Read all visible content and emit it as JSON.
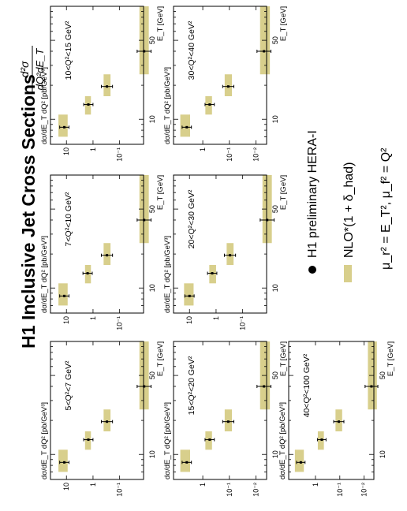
{
  "title": "H1 Inclusive Jet Cross Sections",
  "formula": {
    "numerator": "d²σ",
    "denominator": "dQ²dE_T"
  },
  "legend": {
    "data_label": "H1 preliminary HERA-I",
    "nlo_label": "NLO*(1 + δ_had)",
    "scale_label": "μ_r² = E_T², μ_f² = Q²"
  },
  "axis_labels": {
    "x": "E_T [GeV]",
    "y": "dσ/dE_T dQ² [pb/GeV³]"
  },
  "colors": {
    "nlo_band": "#d8cf8c",
    "data_point": "#000000"
  },
  "chart_data": [
    {
      "type": "scatter",
      "label": "5<Q²<7 GeV²",
      "x_ticks": [
        10,
        50
      ],
      "y_ticks": [
        "10",
        "1",
        "10⁻¹"
      ],
      "log_x": true,
      "log_y": true,
      "points": [
        {
          "x": 8.5,
          "y": 12,
          "err": 0.1
        },
        {
          "x": 13.5,
          "y": 1.5,
          "err": 0.1
        },
        {
          "x": 19.5,
          "y": 0.3,
          "err": 0.12
        },
        {
          "x": 40,
          "y": 0.012,
          "err": 0.15
        }
      ],
      "bands": [
        {
          "xmin": 7,
          "xmax": 11,
          "ymin": 9,
          "ymax": 20
        },
        {
          "xmin": 11,
          "xmax": 16,
          "ymin": 1.2,
          "ymax": 2
        },
        {
          "xmin": 16,
          "xmax": 25,
          "ymin": 0.22,
          "ymax": 0.4
        },
        {
          "xmin": 25,
          "xmax": 100,
          "ymin": 0.008,
          "ymax": 0.018
        }
      ]
    },
    {
      "type": "scatter",
      "label": "7<Q²<10 GeV²",
      "x_ticks": [
        10,
        50
      ],
      "y_ticks": [
        "10",
        "1",
        "10⁻¹"
      ],
      "log_x": true,
      "log_y": true,
      "points": [
        {
          "x": 8.5,
          "y": 12,
          "err": 0.1
        },
        {
          "x": 13.5,
          "y": 1.6,
          "err": 0.1
        },
        {
          "x": 19.5,
          "y": 0.3,
          "err": 0.12
        },
        {
          "x": 40,
          "y": 0.012,
          "err": 0.15
        }
      ],
      "bands": [
        {
          "xmin": 7,
          "xmax": 11,
          "ymin": 9,
          "ymax": 20
        },
        {
          "xmin": 11,
          "xmax": 16,
          "ymin": 1.2,
          "ymax": 2
        },
        {
          "xmin": 16,
          "xmax": 25,
          "ymin": 0.22,
          "ymax": 0.4
        },
        {
          "xmin": 25,
          "xmax": 100,
          "ymin": 0.008,
          "ymax": 0.018
        }
      ]
    },
    {
      "type": "scatter",
      "label": "10<Q²<15 GeV²",
      "x_ticks": [
        10,
        50
      ],
      "y_ticks": [
        "10",
        "1",
        "10⁻¹"
      ],
      "log_x": true,
      "log_y": true,
      "points": [
        {
          "x": 8.5,
          "y": 12,
          "err": 0.1
        },
        {
          "x": 13.5,
          "y": 1.5,
          "err": 0.1
        },
        {
          "x": 19.5,
          "y": 0.3,
          "err": 0.12
        },
        {
          "x": 40,
          "y": 0.012,
          "err": 0.15
        }
      ],
      "bands": [
        {
          "xmin": 7,
          "xmax": 11,
          "ymin": 9,
          "ymax": 20
        },
        {
          "xmin": 11,
          "xmax": 16,
          "ymin": 1.2,
          "ymax": 2
        },
        {
          "xmin": 16,
          "xmax": 25,
          "ymin": 0.22,
          "ymax": 0.4
        },
        {
          "xmin": 25,
          "xmax": 100,
          "ymin": 0.008,
          "ymax": 0.018
        }
      ]
    },
    {
      "type": "scatter",
      "label": "15<Q²<20 GeV²",
      "x_ticks": [
        10,
        50
      ],
      "y_ticks": [
        "1",
        "10⁻¹",
        "10⁻²"
      ],
      "log_x": true,
      "log_y": true,
      "points": [
        {
          "x": 8.5,
          "y": 4,
          "err": 0.1
        },
        {
          "x": 13.5,
          "y": 0.55,
          "err": 0.1
        },
        {
          "x": 19.5,
          "y": 0.11,
          "err": 0.12
        },
        {
          "x": 40,
          "y": 0.005,
          "err": 0.15
        }
      ],
      "bands": [
        {
          "xmin": 7,
          "xmax": 11,
          "ymin": 3,
          "ymax": 7
        },
        {
          "xmin": 11,
          "xmax": 16,
          "ymin": 0.45,
          "ymax": 0.8
        },
        {
          "xmin": 16,
          "xmax": 25,
          "ymin": 0.08,
          "ymax": 0.15
        },
        {
          "xmin": 25,
          "xmax": 100,
          "ymin": 0.003,
          "ymax": 0.007
        }
      ]
    },
    {
      "type": "scatter",
      "label": "20<Q²<30 GeV²",
      "x_ticks": [
        10,
        50
      ],
      "y_ticks": [
        "10",
        "1",
        "10⁻¹"
      ],
      "log_x": true,
      "log_y": true,
      "points": [
        {
          "x": 8.5,
          "y": 10,
          "err": 0.1
        },
        {
          "x": 13.5,
          "y": 1.4,
          "err": 0.1
        },
        {
          "x": 19.5,
          "y": 0.3,
          "err": 0.12
        },
        {
          "x": 40,
          "y": 0.012,
          "err": 0.15
        }
      ],
      "bands": [
        {
          "xmin": 7,
          "xmax": 11,
          "ymin": 7,
          "ymax": 16
        },
        {
          "xmin": 11,
          "xmax": 16,
          "ymin": 1.0,
          "ymax": 1.8
        },
        {
          "xmin": 16,
          "xmax": 25,
          "ymin": 0.22,
          "ymax": 0.4
        },
        {
          "xmin": 25,
          "xmax": 100,
          "ymin": 0.008,
          "ymax": 0.018
        }
      ]
    },
    {
      "type": "scatter",
      "label": "30<Q²<40 GeV²",
      "x_ticks": [
        10,
        50
      ],
      "y_ticks": [
        "1",
        "10⁻¹",
        "10⁻²"
      ],
      "log_x": true,
      "log_y": true,
      "points": [
        {
          "x": 8.5,
          "y": 4,
          "err": 0.1
        },
        {
          "x": 13.5,
          "y": 0.55,
          "err": 0.1
        },
        {
          "x": 19.5,
          "y": 0.11,
          "err": 0.12
        },
        {
          "x": 40,
          "y": 0.005,
          "err": 0.15
        }
      ],
      "bands": [
        {
          "xmin": 7,
          "xmax": 11,
          "ymin": 3,
          "ymax": 7
        },
        {
          "xmin": 11,
          "xmax": 16,
          "ymin": 0.45,
          "ymax": 0.8
        },
        {
          "xmin": 16,
          "xmax": 25,
          "ymin": 0.08,
          "ymax": 0.15
        },
        {
          "xmin": 25,
          "xmax": 100,
          "ymin": 0.003,
          "ymax": 0.007
        }
      ]
    },
    {
      "type": "scatter",
      "label": "40<Q²<100 GeV²",
      "x_ticks": [
        10,
        50
      ],
      "y_ticks": [
        "1",
        "10⁻¹",
        "10⁻²"
      ],
      "log_x": true,
      "log_y": true,
      "points": [
        {
          "x": 8.5,
          "y": 4,
          "err": 0.1
        },
        {
          "x": 13.5,
          "y": 0.55,
          "err": 0.1
        },
        {
          "x": 19.5,
          "y": 0.11,
          "err": 0.12
        },
        {
          "x": 40,
          "y": 0.005,
          "err": 0.15
        }
      ],
      "bands": [
        {
          "xmin": 7,
          "xmax": 11,
          "ymin": 3,
          "ymax": 7
        },
        {
          "xmin": 11,
          "xmax": 16,
          "ymin": 0.45,
          "ymax": 0.8
        },
        {
          "xmin": 16,
          "xmax": 25,
          "ymin": 0.08,
          "ymax": 0.15
        },
        {
          "xmin": 25,
          "xmax": 100,
          "ymin": 0.003,
          "ymax": 0.007
        }
      ]
    }
  ]
}
